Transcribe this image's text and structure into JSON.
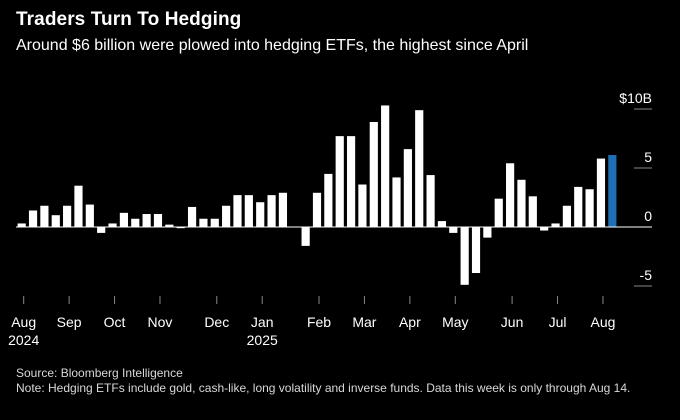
{
  "header": {
    "title": "Traders Turn To Hedging",
    "subtitle": "Around $6 billion were plowed into hedging ETFs, the highest since April"
  },
  "footer": {
    "source": "Source: Bloomberg Intelligence",
    "note": "Note: Hedging ETFs include gold, cash-like, long volatility and inverse funds. Data this week is only through Aug 14."
  },
  "colors": {
    "background": "#000000",
    "bar": "#ffffff",
    "highlight": "#1f6fb5",
    "zero_line": "#ffffff",
    "tick": "#888888"
  },
  "chart_data": {
    "type": "bar",
    "title": "Traders Turn To Hedging",
    "subtitle": "Around $6 billion were plowed into hedging ETFs, the highest since April",
    "unit": "weekly flows, $B",
    "ylim": [
      -5,
      10
    ],
    "y_ticks": [
      {
        "value": 10,
        "label": "$10B"
      },
      {
        "value": 5,
        "label": "5"
      },
      {
        "value": 0,
        "label": "0"
      },
      {
        "value": -5,
        "label": "-5"
      }
    ],
    "x_tick_labels": [
      {
        "label": "Aug",
        "sublabel": "2024",
        "week": 0
      },
      {
        "label": "Sep",
        "week": 4
      },
      {
        "label": "Oct",
        "week": 8
      },
      {
        "label": "Nov",
        "week": 12
      },
      {
        "label": "Dec",
        "week": 17
      },
      {
        "label": "Jan",
        "sublabel": "2025",
        "week": 21
      },
      {
        "label": "Feb",
        "week": 26
      },
      {
        "label": "Mar",
        "week": 30
      },
      {
        "label": "Apr",
        "week": 34
      },
      {
        "label": "May",
        "week": 38
      },
      {
        "label": "Jun",
        "week": 43
      },
      {
        "label": "Jul",
        "week": 47
      },
      {
        "label": "Aug",
        "week": 51
      }
    ],
    "values": [
      0.3,
      1.4,
      1.8,
      1.0,
      1.8,
      3.5,
      1.9,
      -0.5,
      0.3,
      1.2,
      0.7,
      1.1,
      1.1,
      0.2,
      -0.1,
      1.7,
      0.7,
      0.7,
      1.8,
      2.7,
      2.7,
      2.1,
      2.7,
      2.9,
      0,
      -1.6,
      2.9,
      4.5,
      7.7,
      7.7,
      3.6,
      8.9,
      10.3,
      4.2,
      6.6,
      9.9,
      4.4,
      0.5,
      -0.5,
      -4.9,
      -3.9,
      -0.9,
      2.4,
      5.4,
      4.0,
      2.6,
      -0.3,
      0.3,
      1.8,
      3.4,
      3.2,
      5.8,
      6.1
    ],
    "highlight_index": 52,
    "grid": false,
    "legend": "none"
  }
}
